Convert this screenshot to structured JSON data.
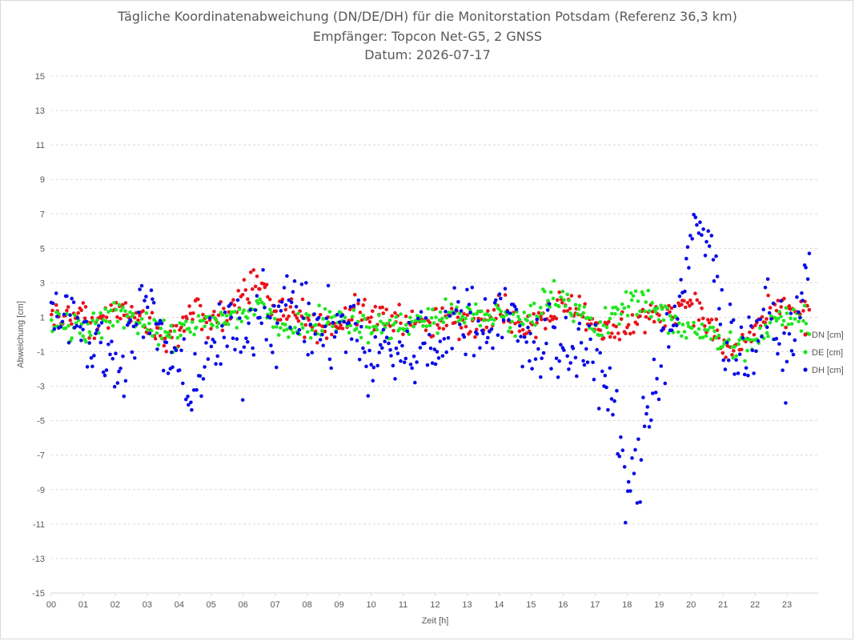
{
  "chart_data": {
    "type": "scatter",
    "title_lines": [
      "Tägliche Koordinatenabweichung (DN/DE/DH) für die Monitorstation Potsdam (Referenz 36,3 km)",
      "Empfänger: Topcon Net-G5, 2 GNSS",
      "Datum: 2026-07-17"
    ],
    "xlabel": "Zeit [h]",
    "ylabel": "Abweichung [cm]",
    "xlim": [
      0,
      24
    ],
    "ylim": [
      -15,
      15
    ],
    "x_ticks": [
      "00",
      "01",
      "02",
      "03",
      "04",
      "05",
      "06",
      "07",
      "08",
      "09",
      "10",
      "11",
      "12",
      "13",
      "14",
      "15",
      "16",
      "17",
      "18",
      "19",
      "20",
      "21",
      "22",
      "23"
    ],
    "y_ticks": [
      15,
      13,
      11,
      9,
      7,
      5,
      3,
      1,
      -1,
      -3,
      -5,
      -7,
      -9,
      -11,
      -13,
      -15
    ],
    "grid": "horizontal-dashed",
    "legend_position": "right",
    "series": [
      {
        "name": "DN [cm]",
        "color": "#e8131b",
        "keyframes": [
          [
            0,
            1.0
          ],
          [
            0.5,
            0.9
          ],
          [
            1,
            1.5
          ],
          [
            1.5,
            0.5
          ],
          [
            2,
            1.3
          ],
          [
            2.5,
            1.2
          ],
          [
            3,
            0.6
          ],
          [
            3.5,
            -0.2
          ],
          [
            4,
            0.3
          ],
          [
            4.5,
            1.5
          ],
          [
            5,
            0.6
          ],
          [
            5.5,
            1.2
          ],
          [
            6,
            2.2
          ],
          [
            6.4,
            3.5
          ],
          [
            6.8,
            2.4
          ],
          [
            7,
            1.2
          ],
          [
            7.5,
            1.4
          ],
          [
            8,
            0.9
          ],
          [
            8.5,
            0.4
          ],
          [
            9,
            0.7
          ],
          [
            9.5,
            1.3
          ],
          [
            10,
            1.0
          ],
          [
            10.5,
            1.0
          ],
          [
            11,
            1.0
          ],
          [
            11.5,
            0.4
          ],
          [
            12,
            0.6
          ],
          [
            12.5,
            0.9
          ],
          [
            13,
            0.4
          ],
          [
            13.5,
            0.9
          ],
          [
            14,
            1.8
          ],
          [
            14.5,
            0.8
          ],
          [
            15,
            0.4
          ],
          [
            15.5,
            1.0
          ],
          [
            16,
            2.2
          ],
          [
            16.5,
            1.4
          ],
          [
            17,
            0.8
          ],
          [
            17.5,
            0.0
          ],
          [
            18,
            0.6
          ],
          [
            18.5,
            1.0
          ],
          [
            19,
            0.9
          ],
          [
            19.5,
            1.6
          ],
          [
            20,
            2.0
          ],
          [
            20.5,
            0.6
          ],
          [
            21,
            -0.6
          ],
          [
            21.5,
            -1.0
          ],
          [
            22,
            0.4
          ],
          [
            22.5,
            1.2
          ],
          [
            23,
            1.6
          ],
          [
            23.7,
            1.6
          ]
        ]
      },
      {
        "name": "DE [cm]",
        "color": "#1ee61e",
        "keyframes": [
          [
            0,
            0.4
          ],
          [
            0.5,
            0.5
          ],
          [
            1,
            0.2
          ],
          [
            1.5,
            0.3
          ],
          [
            2,
            1.4
          ],
          [
            2.5,
            1.0
          ],
          [
            3,
            0.6
          ],
          [
            3.5,
            0.0
          ],
          [
            4,
            -0.1
          ],
          [
            4.5,
            0.4
          ],
          [
            5,
            0.8
          ],
          [
            5.5,
            0.9
          ],
          [
            6,
            1.1
          ],
          [
            6.5,
            1.6
          ],
          [
            7,
            0.8
          ],
          [
            7.5,
            0.4
          ],
          [
            8,
            0.6
          ],
          [
            8.5,
            1.0
          ],
          [
            9,
            1.0
          ],
          [
            9.5,
            0.8
          ],
          [
            10,
            0.2
          ],
          [
            10.5,
            0.5
          ],
          [
            11,
            0.6
          ],
          [
            11.5,
            0.8
          ],
          [
            12,
            0.9
          ],
          [
            12.5,
            1.3
          ],
          [
            13,
            1.2
          ],
          [
            13.5,
            0.8
          ],
          [
            14,
            1.4
          ],
          [
            14.5,
            0.5
          ],
          [
            15,
            1.0
          ],
          [
            15.5,
            2.0
          ],
          [
            16,
            2.4
          ],
          [
            16.5,
            1.2
          ],
          [
            17,
            0.3
          ],
          [
            17.5,
            0.8
          ],
          [
            18,
            1.8
          ],
          [
            18.5,
            2.2
          ],
          [
            19,
            1.2
          ],
          [
            19.5,
            0.5
          ],
          [
            20,
            0.6
          ],
          [
            20.5,
            0.1
          ],
          [
            21,
            -0.5
          ],
          [
            21.5,
            -0.8
          ],
          [
            22,
            -0.6
          ],
          [
            22.5,
            0.5
          ],
          [
            23,
            1.4
          ],
          [
            23.7,
            0.6
          ]
        ]
      },
      {
        "name": "DH [cm]",
        "color": "#0a0ae6",
        "keyframes": [
          [
            0,
            1.0
          ],
          [
            0.5,
            2.2
          ],
          [
            1,
            0.2
          ],
          [
            1.5,
            -0.6
          ],
          [
            2,
            -2.0
          ],
          [
            2.5,
            0.2
          ],
          [
            3,
            1.8
          ],
          [
            3.5,
            -1.0
          ],
          [
            4,
            -2.2
          ],
          [
            4.5,
            -3.0
          ],
          [
            5,
            -0.8
          ],
          [
            5.5,
            0.4
          ],
          [
            6,
            -0.8
          ],
          [
            6.5,
            1.8
          ],
          [
            7,
            0.6
          ],
          [
            7.5,
            2.0
          ],
          [
            8,
            0.5
          ],
          [
            8.5,
            0.0
          ],
          [
            9,
            0.6
          ],
          [
            9.5,
            0.6
          ],
          [
            10,
            -1.8
          ],
          [
            10.5,
            -0.6
          ],
          [
            11,
            -1.2
          ],
          [
            11.5,
            -0.6
          ],
          [
            12,
            -0.8
          ],
          [
            12.5,
            0.5
          ],
          [
            13,
            1.0
          ],
          [
            13.5,
            0.6
          ],
          [
            14,
            1.6
          ],
          [
            14.5,
            0.6
          ],
          [
            15,
            -1.0
          ],
          [
            15.5,
            0.2
          ],
          [
            16,
            -1.6
          ],
          [
            16.5,
            -0.6
          ],
          [
            17,
            -1.0
          ],
          [
            17.5,
            -4.0
          ],
          [
            18,
            -9.0
          ],
          [
            18.3,
            -8.5
          ],
          [
            18.6,
            -5.0
          ],
          [
            19,
            -1.6
          ],
          [
            19.5,
            1.0
          ],
          [
            20,
            5.0
          ],
          [
            20.4,
            6.2
          ],
          [
            20.8,
            3.5
          ],
          [
            21,
            0.0
          ],
          [
            21.5,
            -0.9
          ],
          [
            22,
            -0.4
          ],
          [
            22.5,
            1.2
          ],
          [
            23,
            -1.2
          ],
          [
            23.4,
            1.0
          ],
          [
            23.7,
            4.2
          ]
        ]
      }
    ]
  }
}
